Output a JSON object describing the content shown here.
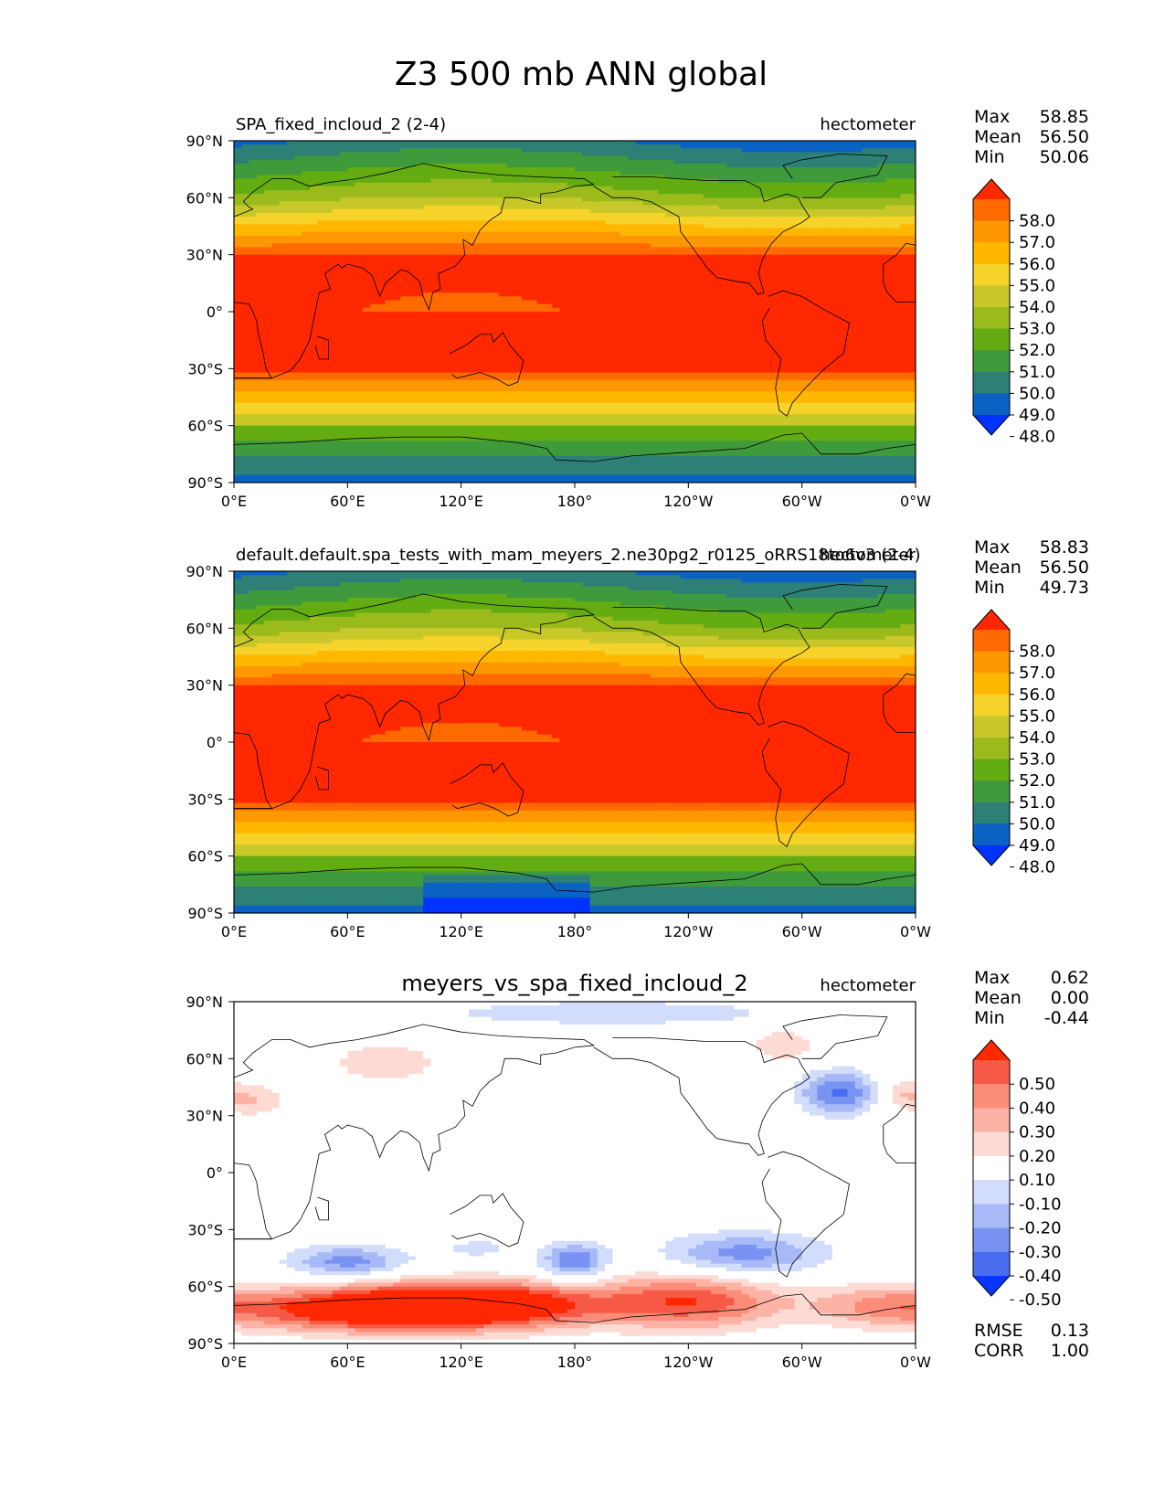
{
  "title": "Z3 500 mb ANN global",
  "chart_data": [
    {
      "type": "contour-map",
      "left_title": "SPA_fixed_incloud_2 (2-4)",
      "center_title": "",
      "right_title": "hectometer",
      "stats": [
        {
          "label": "Max",
          "value": "58.85"
        },
        {
          "label": "Mean",
          "value": "56.50"
        },
        {
          "label": "Min",
          "value": "50.06"
        }
      ],
      "extra_stats": [],
      "colorbar": {
        "labels": [
          "58.0",
          "57.0",
          "56.0",
          "55.0",
          "54.0",
          "53.0",
          "52.0",
          "51.0",
          "50.0",
          "49.0",
          "48.0"
        ],
        "colors": [
          "#ff2800",
          "#ff6a00",
          "#ff9800",
          "#ffb700",
          "#f6d32b",
          "#c9c82a",
          "#9bbb1c",
          "#63ac12",
          "#3f9a3c",
          "#2c8076",
          "#0b62c3",
          "#0033ff"
        ]
      },
      "field": "abs",
      "xticks": [
        "0°E",
        "60°E",
        "120°E",
        "180°",
        "120°W",
        "60°W",
        "0°W"
      ],
      "yticks": [
        "90°N",
        "60°N",
        "30°N",
        "0°",
        "30°S",
        "60°S",
        "90°S"
      ]
    },
    {
      "type": "contour-map",
      "left_title": "default.default.spa_tests_with_mam_meyers_2.ne30pg2_r0125_oRRS18to6v3 (2-4)",
      "center_title": "",
      "right_title": "hectometer",
      "stats": [
        {
          "label": "Max",
          "value": "58.83"
        },
        {
          "label": "Mean",
          "value": "56.50"
        },
        {
          "label": "Min",
          "value": "49.73"
        }
      ],
      "extra_stats": [],
      "colorbar": {
        "labels": [
          "58.0",
          "57.0",
          "56.0",
          "55.0",
          "54.0",
          "53.0",
          "52.0",
          "51.0",
          "50.0",
          "49.0",
          "48.0"
        ],
        "colors": [
          "#ff2800",
          "#ff6a00",
          "#ff9800",
          "#ffb700",
          "#f6d32b",
          "#c9c82a",
          "#9bbb1c",
          "#63ac12",
          "#3f9a3c",
          "#2c8076",
          "#0b62c3",
          "#0033ff"
        ]
      },
      "field": "abs",
      "xticks": [
        "0°E",
        "60°E",
        "120°E",
        "180°",
        "120°W",
        "60°W",
        "0°W"
      ],
      "yticks": [
        "90°N",
        "60°N",
        "30°N",
        "0°",
        "30°S",
        "60°S",
        "90°S"
      ]
    },
    {
      "type": "contour-map",
      "left_title": "",
      "center_title": "meyers_vs_spa_fixed_incloud_2",
      "right_title": "hectometer",
      "stats": [
        {
          "label": "Max",
          "value": "0.62"
        },
        {
          "label": "Mean",
          "value": "0.00"
        },
        {
          "label": "Min",
          "value": "-0.44"
        }
      ],
      "extra_stats": [
        {
          "label": "RMSE",
          "value": "0.13"
        },
        {
          "label": "CORR",
          "value": "1.00"
        }
      ],
      "colorbar": {
        "labels": [
          "0.50",
          "0.40",
          "0.30",
          "0.20",
          "0.10",
          "-0.10",
          "-0.20",
          "-0.30",
          "-0.40",
          "-0.50"
        ],
        "colors": [
          "#ff2800",
          "#f65a47",
          "#fb8c78",
          "#fcb3a6",
          "#fddad3",
          "#ffffff",
          "#d2dcfb",
          "#a8b9f7",
          "#7993f2",
          "#4a6df0",
          "#0a35ff"
        ]
      },
      "field": "diff",
      "xticks": [
        "0°E",
        "60°E",
        "120°E",
        "180°",
        "120°W",
        "60°W",
        "0°W"
      ],
      "yticks": [
        "90°N",
        "60°N",
        "30°N",
        "0°",
        "30°S",
        "60°S",
        "90°S"
      ]
    }
  ]
}
